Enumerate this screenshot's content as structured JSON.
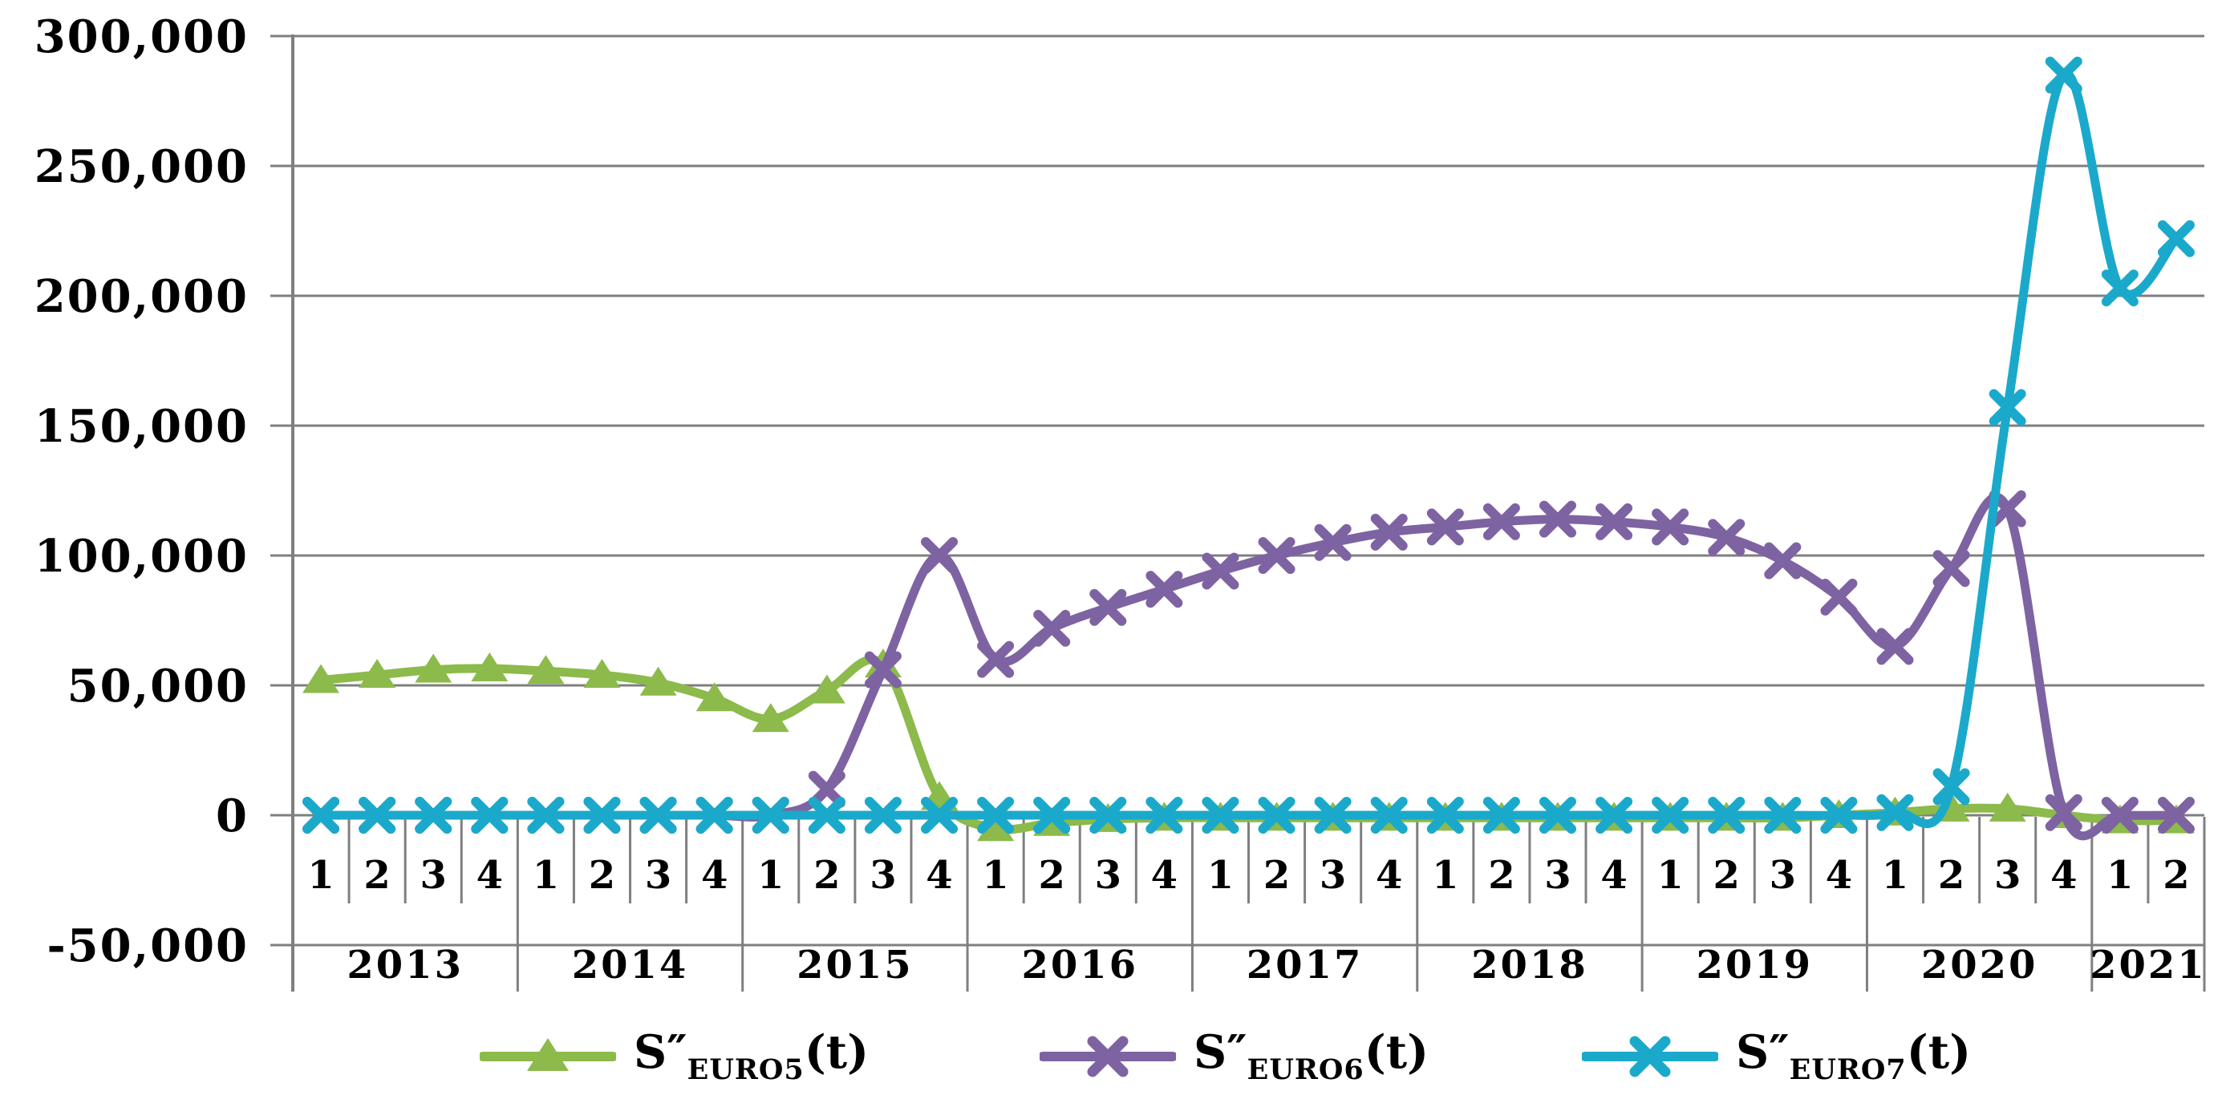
{
  "chart_data": {
    "type": "line",
    "title": "",
    "smoothed_lines": true,
    "background": "#ffffff",
    "grid_color": "#7f7f7f",
    "text_color": "#000000",
    "x_axis": {
      "quarter_labels": [
        "1",
        "2",
        "3",
        "4",
        "1",
        "2",
        "3",
        "4",
        "1",
        "2",
        "3",
        "4",
        "1",
        "2",
        "3",
        "4",
        "1",
        "2",
        "3",
        "4",
        "1",
        "2",
        "3",
        "4",
        "1",
        "2",
        "3",
        "4",
        "1",
        "2",
        "3",
        "4",
        "1",
        "2"
      ],
      "year_groups": [
        {
          "label": "2013",
          "quarters": 4
        },
        {
          "label": "2014",
          "quarters": 4
        },
        {
          "label": "2015",
          "quarters": 4
        },
        {
          "label": "2016",
          "quarters": 4
        },
        {
          "label": "2017",
          "quarters": 4
        },
        {
          "label": "2018",
          "quarters": 4
        },
        {
          "label": "2019",
          "quarters": 4
        },
        {
          "label": "2020",
          "quarters": 4
        },
        {
          "label": "2021",
          "quarters": 2
        }
      ]
    },
    "y_axis": {
      "min": -50000,
      "max": 300000,
      "step": 50000,
      "tick_labels": [
        "300,000",
        "250,000",
        "200,000",
        "150,000",
        "100,000",
        "50,000",
        "0",
        "-50,000"
      ],
      "grid": true
    },
    "legend_position": "bottom",
    "series": [
      {
        "name": "S''EURO5(t)",
        "color": "#8CBA4B",
        "marker": "triangle",
        "values": [
          52000,
          54000,
          56000,
          56500,
          55500,
          54000,
          51000,
          45000,
          37000,
          48000,
          58000,
          7000,
          -5000,
          -3000,
          -1500,
          -1000,
          -1000,
          -1000,
          -1000,
          -1000,
          -1000,
          -1000,
          -1000,
          -1000,
          -1000,
          -1000,
          -1000,
          0,
          1000,
          2500,
          2500,
          0,
          -2000,
          -2000
        ]
      },
      {
        "name": "S''EURO6(t)",
        "color": "#7E63A2",
        "marker": "x",
        "values": [
          0,
          0,
          0,
          0,
          0,
          0,
          0,
          0,
          0,
          10000,
          56000,
          100000,
          60000,
          72000,
          80000,
          87000,
          94000,
          100000,
          105000,
          109000,
          111000,
          113000,
          114000,
          113000,
          111000,
          107000,
          98000,
          84000,
          65000,
          95000,
          118000,
          1000,
          0,
          0
        ]
      },
      {
        "name": "S''EURO7(t)",
        "color": "#1BA9CB",
        "marker": "x",
        "values": [
          0,
          0,
          0,
          0,
          0,
          0,
          0,
          0,
          0,
          0,
          0,
          0,
          0,
          0,
          0,
          0,
          0,
          0,
          0,
          0,
          0,
          0,
          0,
          0,
          0,
          0,
          0,
          0,
          1000,
          11000,
          157000,
          285000,
          203000,
          222000
        ]
      }
    ]
  },
  "legend": {
    "items": [
      {
        "base": "S″",
        "sub": "EURO5",
        "tail": "(t)"
      },
      {
        "base": "S″",
        "sub": "EURO6",
        "tail": "(t)"
      },
      {
        "base": "S″",
        "sub": "EURO7",
        "tail": "(t)"
      }
    ]
  }
}
